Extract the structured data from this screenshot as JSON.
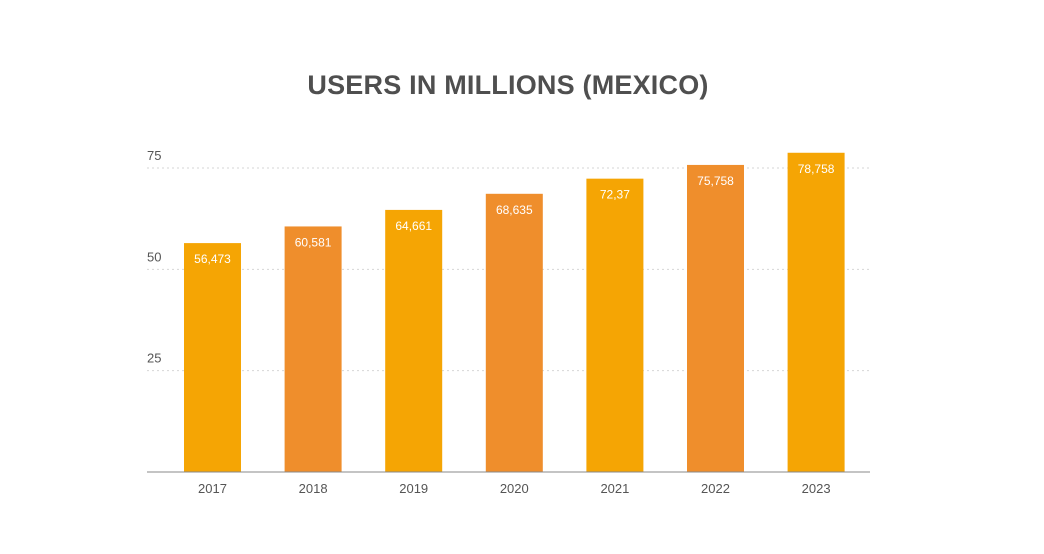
{
  "chart_data": {
    "type": "bar",
    "title": "USERS IN MILLIONS (MEXICO)",
    "xlabel": "",
    "ylabel": "",
    "categories": [
      "2017",
      "2018",
      "2019",
      "2020",
      "2021",
      "2022",
      "2023"
    ],
    "values": [
      56.473,
      60.581,
      64.661,
      68.635,
      72.37,
      75.758,
      78.758
    ],
    "data_labels": [
      "56,473",
      "60,581",
      "64,661",
      "68,635",
      "72,37",
      "75,758",
      "78,758"
    ],
    "yticks": [
      25,
      50,
      75
    ],
    "ylim": [
      0,
      75
    ],
    "grid": true,
    "legend": "none",
    "colors": [
      "#F5A504",
      "#EF8E2C",
      "#F5A504",
      "#EF8E2C",
      "#F5A504",
      "#EF8E2C",
      "#F5A504"
    ],
    "axis_color": "#888888",
    "grid_color": "#d6d6d6"
  }
}
